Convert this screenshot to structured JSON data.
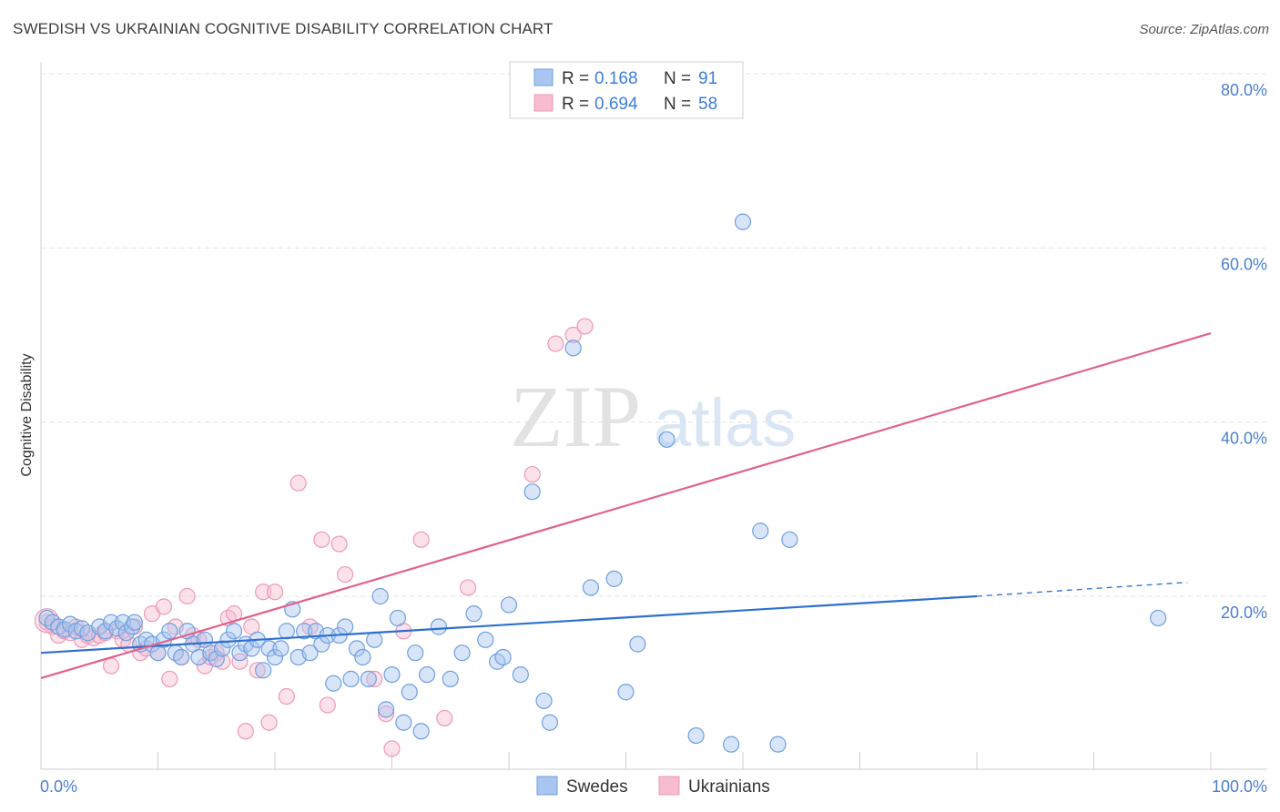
{
  "title": "SWEDISH VS UKRAINIAN COGNITIVE DISABILITY CORRELATION CHART",
  "source": "Source: ZipAtlas.com",
  "watermark": {
    "zip": "ZIP",
    "atlas": "atlas"
  },
  "legend": {
    "row1": {
      "r_label": "R =",
      "r_value": "0.168",
      "n_label": "N =",
      "n_value": "91"
    },
    "row2": {
      "r_label": "R =",
      "r_value": "0.694",
      "n_label": "N =",
      "n_value": "58"
    }
  },
  "bottom_legend": {
    "swedes": "Swedes",
    "ukrainians": "Ukrainians"
  },
  "colors": {
    "swedes_fill": "#a8c6f0",
    "swedes_stroke": "#6f9fe0",
    "swedes_line": "#2f6fcf",
    "ukrainians_fill": "#f7bcd0",
    "ukrainians_stroke": "#ec9ab6",
    "ukrainians_line": "#e0628e",
    "tick_label": "#4a7fd0"
  },
  "chart_data": {
    "type": "scatter",
    "title": "SWEDISH VS UKRAINIAN COGNITIVE DISABILITY CORRELATION CHART",
    "xlabel": "",
    "ylabel": "Cognitive Disability",
    "xlim": [
      0,
      100
    ],
    "ylim": [
      0,
      83
    ],
    "x_tick_labels": [
      "0.0%",
      "100.0%"
    ],
    "y_ticks": [
      20,
      40,
      60,
      80
    ],
    "y_tick_labels": [
      "20.0%",
      "40.0%",
      "60.0%",
      "80.0%"
    ],
    "grid": "horizontal dashed",
    "legend_position": "top-center",
    "series": [
      {
        "name": "Swedes",
        "r": 0.168,
        "n": 91,
        "trend": {
          "x0": 0,
          "y0": 13.5,
          "x1": 80,
          "y1": 20.0,
          "dashed_to_x": 98,
          "dashed_y": 21.6
        },
        "points": [
          [
            0.5,
            17.5
          ],
          [
            1,
            17
          ],
          [
            1.5,
            16.5
          ],
          [
            2,
            16.2
          ],
          [
            2.5,
            16.8
          ],
          [
            3,
            16
          ],
          [
            3.5,
            16.3
          ],
          [
            4,
            15.8
          ],
          [
            5,
            16.5
          ],
          [
            5.5,
            16
          ],
          [
            6,
            17
          ],
          [
            6.5,
            16.3
          ],
          [
            7,
            17
          ],
          [
            7.3,
            15.8
          ],
          [
            7.8,
            16.5
          ],
          [
            8,
            17
          ],
          [
            8.5,
            14.5
          ],
          [
            9,
            15
          ],
          [
            9.5,
            14.5
          ],
          [
            10,
            13.5
          ],
          [
            10.5,
            15
          ],
          [
            11,
            16
          ],
          [
            11.5,
            13.5
          ],
          [
            12,
            13
          ],
          [
            12.5,
            16
          ],
          [
            13,
            14.5
          ],
          [
            13.5,
            13
          ],
          [
            14,
            15
          ],
          [
            14.5,
            13.5
          ],
          [
            15,
            12.8
          ],
          [
            15.5,
            14
          ],
          [
            16,
            15
          ],
          [
            16.5,
            16
          ],
          [
            17,
            13.5
          ],
          [
            17.5,
            14.5
          ],
          [
            18,
            14
          ],
          [
            18.5,
            15
          ],
          [
            19,
            11.5
          ],
          [
            19.5,
            14
          ],
          [
            20,
            13
          ],
          [
            20.5,
            14
          ],
          [
            21,
            16
          ],
          [
            21.5,
            18.5
          ],
          [
            22,
            13
          ],
          [
            22.5,
            16
          ],
          [
            23,
            13.5
          ],
          [
            23.5,
            16
          ],
          [
            24,
            14.5
          ],
          [
            24.5,
            15.5
          ],
          [
            25,
            10
          ],
          [
            25.5,
            15.5
          ],
          [
            26,
            16.5
          ],
          [
            26.5,
            10.5
          ],
          [
            27,
            14
          ],
          [
            27.5,
            13
          ],
          [
            28,
            10.5
          ],
          [
            28.5,
            15
          ],
          [
            29,
            20
          ],
          [
            29.5,
            7
          ],
          [
            30,
            11
          ],
          [
            30.5,
            17.5
          ],
          [
            31,
            5.5
          ],
          [
            31.5,
            9
          ],
          [
            32,
            13.5
          ],
          [
            32.5,
            4.5
          ],
          [
            33,
            11
          ],
          [
            34,
            16.5
          ],
          [
            35,
            10.5
          ],
          [
            36,
            13.5
          ],
          [
            37,
            18
          ],
          [
            38,
            15
          ],
          [
            39,
            12.5
          ],
          [
            39.5,
            13
          ],
          [
            40,
            19
          ],
          [
            41,
            11
          ],
          [
            42,
            32
          ],
          [
            43,
            8
          ],
          [
            43.5,
            5.5
          ],
          [
            45.5,
            48.5
          ],
          [
            47,
            21
          ],
          [
            49,
            22
          ],
          [
            50,
            9
          ],
          [
            51,
            14.5
          ],
          [
            53.5,
            38
          ],
          [
            56,
            4
          ],
          [
            59,
            3
          ],
          [
            60,
            63
          ],
          [
            61.5,
            27.5
          ],
          [
            63,
            3
          ],
          [
            64,
            26.5
          ],
          [
            95.5,
            17.5
          ]
        ]
      },
      {
        "name": "Ukrainians",
        "r": 0.694,
        "n": 58,
        "trend": {
          "x0": 0,
          "y0": 10.6,
          "x1": 100,
          "y1": 50.2
        },
        "points": [
          [
            0.5,
            17
          ],
          [
            1,
            16.5
          ],
          [
            1.5,
            15.5
          ],
          [
            2,
            16
          ],
          [
            2.5,
            15.8
          ],
          [
            3,
            16.5
          ],
          [
            3.5,
            15
          ],
          [
            4,
            15.5
          ],
          [
            4.5,
            15.2
          ],
          [
            5,
            15.5
          ],
          [
            5.5,
            15.8
          ],
          [
            6,
            12
          ],
          [
            6.5,
            16
          ],
          [
            7,
            15
          ],
          [
            7.5,
            14.5
          ],
          [
            8,
            16.5
          ],
          [
            8.5,
            13.5
          ],
          [
            9,
            14
          ],
          [
            9.5,
            18
          ],
          [
            10,
            13.5
          ],
          [
            10.5,
            18.8
          ],
          [
            11,
            10.5
          ],
          [
            11.5,
            16.5
          ],
          [
            12,
            13
          ],
          [
            12.5,
            20
          ],
          [
            13,
            15.5
          ],
          [
            13.5,
            15
          ],
          [
            14,
            12
          ],
          [
            14.5,
            13
          ],
          [
            15,
            13.5
          ],
          [
            15.5,
            12.5
          ],
          [
            16,
            17.5
          ],
          [
            16.5,
            18
          ],
          [
            17,
            12.5
          ],
          [
            17.5,
            4.5
          ],
          [
            18,
            16.5
          ],
          [
            18.5,
            11.5
          ],
          [
            19,
            20.5
          ],
          [
            19.5,
            5.5
          ],
          [
            20,
            20.5
          ],
          [
            21,
            8.5
          ],
          [
            22,
            33
          ],
          [
            23,
            16.5
          ],
          [
            24,
            26.5
          ],
          [
            24.5,
            7.5
          ],
          [
            25.5,
            26
          ],
          [
            26,
            22.5
          ],
          [
            28.5,
            10.5
          ],
          [
            29.5,
            6.5
          ],
          [
            30,
            2.5
          ],
          [
            31,
            16
          ],
          [
            32.5,
            26.5
          ],
          [
            34.5,
            6
          ],
          [
            36.5,
            21
          ],
          [
            42,
            34
          ],
          [
            44,
            49
          ],
          [
            45.5,
            50
          ],
          [
            46.5,
            51
          ]
        ]
      }
    ]
  }
}
